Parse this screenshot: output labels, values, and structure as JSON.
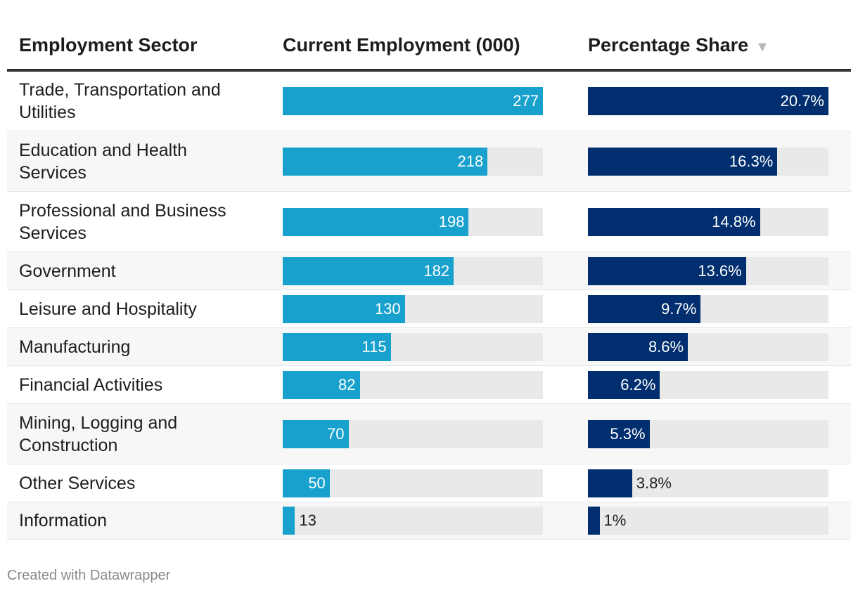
{
  "chart_data": {
    "type": "table",
    "columns": [
      "Employment Sector",
      "Current Employment (000)",
      "Percentage Share"
    ],
    "sort_indicator": "▼",
    "sorted_column": "Percentage Share",
    "colors": {
      "employment_bar": "#18a1cd",
      "share_bar": "#002e6e",
      "track": "#e9e9e9"
    },
    "rows": [
      {
        "sector": "Trade, Transportation and Utilities",
        "employment": 277,
        "employment_label": "277",
        "share": 20.7,
        "share_label": "20.7%"
      },
      {
        "sector": "Education and Health Services",
        "employment": 218,
        "employment_label": "218",
        "share": 16.3,
        "share_label": "16.3%"
      },
      {
        "sector": "Professional and Business Services",
        "employment": 198,
        "employment_label": "198",
        "share": 14.8,
        "share_label": "14.8%"
      },
      {
        "sector": "Government",
        "employment": 182,
        "employment_label": "182",
        "share": 13.6,
        "share_label": "13.6%"
      },
      {
        "sector": "Leisure and Hospitality",
        "employment": 130,
        "employment_label": "130",
        "share": 9.7,
        "share_label": "9.7%"
      },
      {
        "sector": "Manufacturing",
        "employment": 115,
        "employment_label": "115",
        "share": 8.6,
        "share_label": "8.6%"
      },
      {
        "sector": "Financial Activities",
        "employment": 82,
        "employment_label": "82",
        "share": 6.2,
        "share_label": "6.2%"
      },
      {
        "sector": "Mining, Logging and Construction",
        "employment": 70,
        "employment_label": "70",
        "share": 5.3,
        "share_label": "5.3%"
      },
      {
        "sector": "Other Services",
        "employment": 50,
        "employment_label": "50",
        "share": 3.8,
        "share_label": "3.8%"
      },
      {
        "sector": "Information",
        "employment": 13,
        "employment_label": "13",
        "share": 1,
        "share_label": "1%"
      }
    ]
  },
  "footer": "Created with Datawrapper"
}
